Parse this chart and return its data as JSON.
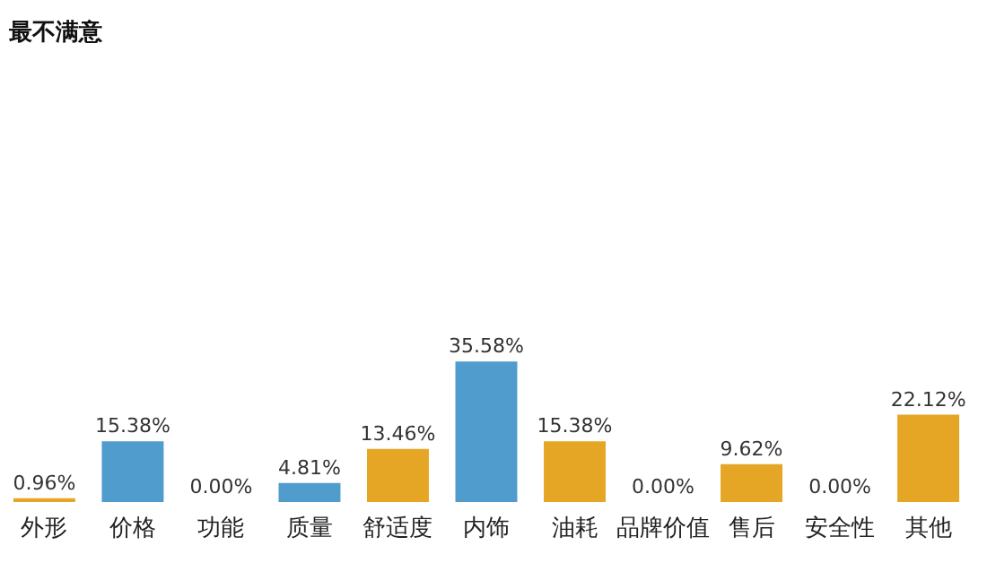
{
  "chart_data": {
    "type": "bar",
    "title": "最不满意",
    "categories": [
      "外形",
      "价格",
      "功能",
      "质量",
      "舒适度",
      "内饰",
      "油耗",
      "品牌价值",
      "售后",
      "安全性",
      "其他"
    ],
    "values": [
      0.96,
      15.38,
      0.0,
      4.81,
      13.46,
      35.58,
      15.38,
      0.0,
      9.62,
      0.0,
      22.12
    ],
    "colors": [
      "#e5a626",
      "#4f9ccd",
      "#e5a626",
      "#4f9ccd",
      "#e5a626",
      "#4f9ccd",
      "#e5a626",
      "#e5a626",
      "#e5a626",
      "#e5a626",
      "#e5a626"
    ],
    "value_labels": [
      "0.96%",
      "15.38%",
      "0.00%",
      "4.81%",
      "13.46%",
      "35.58%",
      "15.38%",
      "0.00%",
      "9.62%",
      "0.00%",
      "22.12%"
    ],
    "grid": false
  }
}
